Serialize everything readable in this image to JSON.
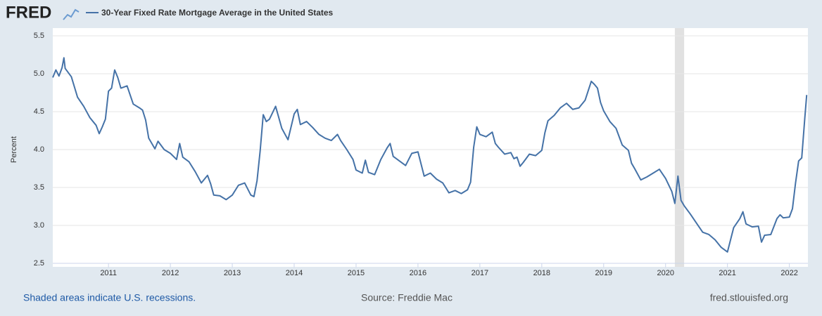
{
  "logo": "FRED",
  "footer": {
    "recession_note": "Shaded areas indicate U.S. recessions.",
    "source": "Source: Freddie Mac",
    "site": "fred.stlouisfed.org"
  },
  "chart_data": {
    "type": "line",
    "y_label": "Percent",
    "xlim": [
      2010.1,
      2022.3
    ],
    "xticks": [
      2011,
      2012,
      2013,
      2014,
      2015,
      2016,
      2017,
      2018,
      2019,
      2020,
      2021,
      2022
    ],
    "ylim": [
      2.5,
      5.5
    ],
    "yticks": [
      2.5,
      {
        "value": 3,
        "label": "3.0"
      },
      3.5,
      {
        "value": 4,
        "label": "4.0"
      },
      4.5,
      {
        "value": 5,
        "label": "5.0"
      },
      5.5
    ],
    "grid": true,
    "recessions": [
      [
        2020.15,
        2020.3
      ]
    ],
    "x": [
      2010.1,
      2010.15,
      2010.2,
      2010.25,
      2010.28,
      2010.3,
      2010.4,
      2010.5,
      2010.6,
      2010.7,
      2010.8,
      2010.85,
      2010.9,
      2010.95,
      2011.0,
      2011.05,
      2011.1,
      2011.15,
      2011.2,
      2011.3,
      2011.4,
      2011.5,
      2011.55,
      2011.6,
      2011.65,
      2011.75,
      2011.8,
      2011.9,
      2012.0,
      2012.1,
      2012.15,
      2012.2,
      2012.3,
      2012.4,
      2012.5,
      2012.6,
      2012.65,
      2012.7,
      2012.8,
      2012.9,
      2013.0,
      2013.1,
      2013.2,
      2013.3,
      2013.35,
      2013.4,
      2013.45,
      2013.5,
      2013.55,
      2013.6,
      2013.7,
      2013.8,
      2013.9,
      2014.0,
      2014.05,
      2014.1,
      2014.2,
      2014.3,
      2014.4,
      2014.5,
      2014.6,
      2014.7,
      2014.75,
      2014.85,
      2014.95,
      2015.0,
      2015.1,
      2015.15,
      2015.2,
      2015.3,
      2015.4,
      2015.5,
      2015.55,
      2015.6,
      2015.7,
      2015.8,
      2015.9,
      2016.0,
      2016.1,
      2016.2,
      2016.3,
      2016.4,
      2016.5,
      2016.6,
      2016.7,
      2016.8,
      2016.85,
      2016.9,
      2016.95,
      2017.0,
      2017.1,
      2017.2,
      2017.25,
      2017.3,
      2017.4,
      2017.5,
      2017.55,
      2017.6,
      2017.65,
      2017.7,
      2017.8,
      2017.9,
      2018.0,
      2018.05,
      2018.1,
      2018.2,
      2018.3,
      2018.4,
      2018.5,
      2018.6,
      2018.7,
      2018.8,
      2018.85,
      2018.9,
      2018.95,
      2019.0,
      2019.1,
      2019.2,
      2019.3,
      2019.4,
      2019.45,
      2019.5,
      2019.6,
      2019.7,
      2019.8,
      2019.9,
      2020.0,
      2020.1,
      2020.15,
      2020.2,
      2020.25,
      2020.3,
      2020.4,
      2020.5,
      2020.6,
      2020.7,
      2020.8,
      2020.9,
      2021.0,
      2021.05,
      2021.1,
      2021.2,
      2021.25,
      2021.3,
      2021.4,
      2021.5,
      2021.55,
      2021.6,
      2021.7,
      2021.8,
      2021.85,
      2021.9,
      2022.0,
      2022.05,
      2022.1,
      2022.15,
      2022.2,
      2022.25,
      2022.28
    ],
    "series": [
      {
        "name": "30-Year Fixed Rate Mortgage Average in the United States",
        "color": "#4572a7",
        "values": [
          4.95,
          5.05,
          4.97,
          5.08,
          5.21,
          5.07,
          4.96,
          4.69,
          4.57,
          4.42,
          4.32,
          4.21,
          4.3,
          4.4,
          4.77,
          4.81,
          5.05,
          4.95,
          4.81,
          4.84,
          4.6,
          4.55,
          4.52,
          4.39,
          4.15,
          4.01,
          4.11,
          4.0,
          3.95,
          3.87,
          4.08,
          3.9,
          3.84,
          3.71,
          3.56,
          3.66,
          3.55,
          3.4,
          3.39,
          3.34,
          3.4,
          3.53,
          3.56,
          3.4,
          3.38,
          3.59,
          3.98,
          4.46,
          4.37,
          4.4,
          4.57,
          4.28,
          4.13,
          4.47,
          4.53,
          4.33,
          4.37,
          4.29,
          4.2,
          4.15,
          4.12,
          4.2,
          4.12,
          4.0,
          3.87,
          3.73,
          3.69,
          3.86,
          3.7,
          3.67,
          3.87,
          4.02,
          4.08,
          3.91,
          3.85,
          3.79,
          3.95,
          3.97,
          3.65,
          3.69,
          3.61,
          3.56,
          3.43,
          3.46,
          3.42,
          3.47,
          3.57,
          4.03,
          4.3,
          4.2,
          4.17,
          4.23,
          4.08,
          4.03,
          3.94,
          3.96,
          3.88,
          3.9,
          3.78,
          3.83,
          3.94,
          3.92,
          3.99,
          4.22,
          4.38,
          4.45,
          4.55,
          4.61,
          4.53,
          4.55,
          4.65,
          4.9,
          4.86,
          4.81,
          4.62,
          4.51,
          4.37,
          4.28,
          4.06,
          3.99,
          3.82,
          3.75,
          3.6,
          3.64,
          3.69,
          3.74,
          3.62,
          3.45,
          3.29,
          3.65,
          3.33,
          3.26,
          3.15,
          3.03,
          2.91,
          2.88,
          2.81,
          2.71,
          2.65,
          2.81,
          2.97,
          3.09,
          3.18,
          3.02,
          2.98,
          2.99,
          2.78,
          2.87,
          2.88,
          3.09,
          3.14,
          3.1,
          3.11,
          3.22,
          3.56,
          3.85,
          3.89,
          4.42,
          4.72
        ]
      }
    ]
  }
}
